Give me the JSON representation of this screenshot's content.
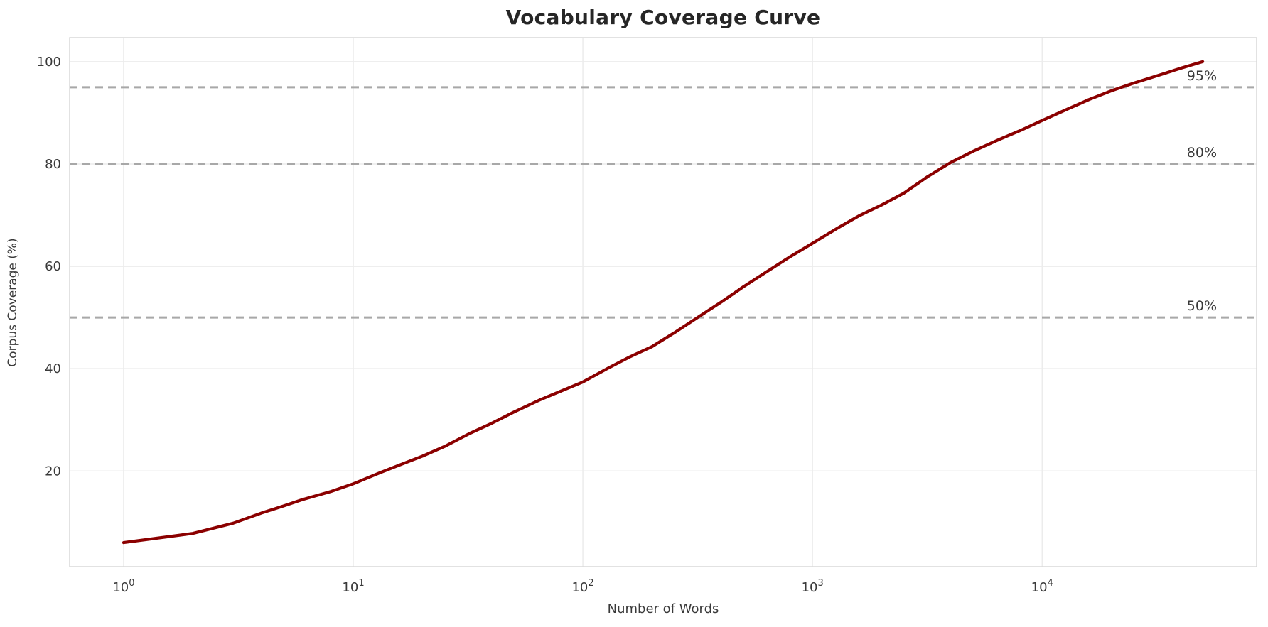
{
  "title": "Vocabulary Coverage Curve",
  "chart_data": {
    "type": "line",
    "title": "Vocabulary Coverage Curve",
    "xlabel": "Number of Words",
    "ylabel": "Corpus Coverage (%)",
    "x_scale": "log",
    "xlim_log10": [
      -0.235,
      4.934
    ],
    "ylim": [
      1.3,
      104.7
    ],
    "x_tick_base": "10",
    "x_tick_exponents": [
      0,
      1,
      2,
      3,
      4
    ],
    "y_ticks": [
      20,
      40,
      60,
      80,
      100
    ],
    "grid": true,
    "legend": "none",
    "series": [
      {
        "name": "vocabulary coverage",
        "color": "#8B0000",
        "points": [
          [
            1,
            6.0
          ],
          [
            2,
            7.8
          ],
          [
            3,
            9.8
          ],
          [
            4,
            11.8
          ],
          [
            5,
            13.2
          ],
          [
            6,
            14.4
          ],
          [
            8,
            16.0
          ],
          [
            10,
            17.5
          ],
          [
            13,
            19.6
          ],
          [
            16,
            21.2
          ],
          [
            20,
            22.9
          ],
          [
            25,
            24.8
          ],
          [
            32,
            27.3
          ],
          [
            40,
            29.3
          ],
          [
            50,
            31.5
          ],
          [
            65,
            33.9
          ],
          [
            80,
            35.6
          ],
          [
            100,
            37.4
          ],
          [
            130,
            40.2
          ],
          [
            160,
            42.3
          ],
          [
            200,
            44.3
          ],
          [
            250,
            47.0
          ],
          [
            316,
            50.0
          ],
          [
            400,
            53.0
          ],
          [
            500,
            56.0
          ],
          [
            650,
            59.3
          ],
          [
            800,
            61.9
          ],
          [
            1000,
            64.5
          ],
          [
            1300,
            67.6
          ],
          [
            1600,
            69.9
          ],
          [
            2000,
            72.0
          ],
          [
            2500,
            74.3
          ],
          [
            3162,
            77.5
          ],
          [
            4000,
            80.3
          ],
          [
            5000,
            82.5
          ],
          [
            6500,
            84.8
          ],
          [
            8000,
            86.5
          ],
          [
            10000,
            88.5
          ],
          [
            13000,
            90.8
          ],
          [
            16000,
            92.6
          ],
          [
            20000,
            94.3
          ],
          [
            25000,
            95.8
          ],
          [
            32000,
            97.3
          ],
          [
            40000,
            98.7
          ],
          [
            50000,
            100.0
          ]
        ]
      }
    ],
    "thresholds": [
      {
        "value": 50,
        "label": "50%"
      },
      {
        "value": 80,
        "label": "80%"
      },
      {
        "value": 95,
        "label": "95%"
      }
    ],
    "colors": {
      "curve": "#8B0000",
      "threshold_line": "#A8A8A8",
      "threshold_label": "#3a3a3a",
      "grid": "#ECECEC",
      "spine": "#D8D8D8",
      "tick_label": "#3a3a3a",
      "title": "#262626",
      "background": "#FFFFFF"
    }
  }
}
